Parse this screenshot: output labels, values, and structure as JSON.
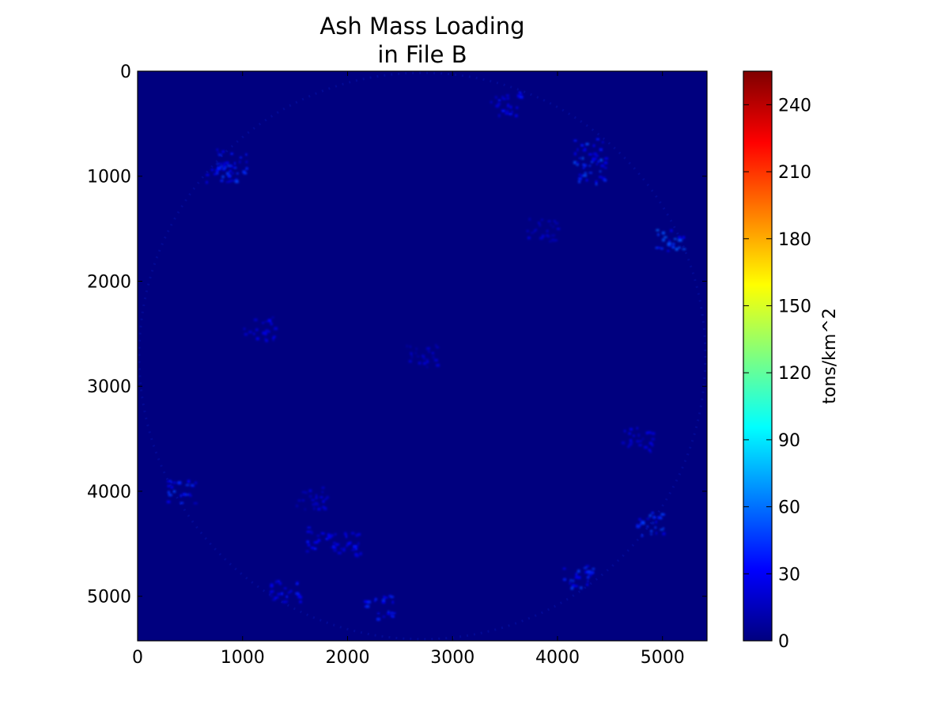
{
  "chart_data": {
    "type": "heatmap",
    "title": "Ash Mass Loading",
    "subtitle": "in File B",
    "x_ticks": [
      0,
      1000,
      2000,
      3000,
      4000,
      5000
    ],
    "y_ticks": [
      0,
      1000,
      2000,
      3000,
      4000,
      5000
    ],
    "xlim": [
      0,
      5424
    ],
    "ylim": [
      5424,
      0
    ],
    "y_inverted": true,
    "grid": false,
    "colormap": "jet",
    "background_color": "#00007f",
    "colorbar": {
      "label": "tons/km^2",
      "range": [
        0,
        255
      ],
      "ticks": [
        0,
        30,
        60,
        90,
        120,
        150,
        180,
        210,
        240
      ],
      "colors": [
        "#00007f",
        "#0000ff",
        "#007fff",
        "#00ffff",
        "#7fff7f",
        "#ffff00",
        "#ff7f00",
        "#ff0000",
        "#7f0000"
      ]
    },
    "disk": {
      "center": [
        2712,
        2712
      ],
      "radius": 2712
    },
    "ash_features": [
      {
        "x": 800,
        "y": 950,
        "value": 40
      },
      {
        "x": 900,
        "y": 850,
        "value": 35
      },
      {
        "x": 1150,
        "y": 2450,
        "value": 25
      },
      {
        "x": 1750,
        "y": 4450,
        "value": 30
      },
      {
        "x": 1650,
        "y": 4050,
        "value": 25
      },
      {
        "x": 2000,
        "y": 4500,
        "value": 30
      },
      {
        "x": 2700,
        "y": 2700,
        "value": 20
      },
      {
        "x": 2300,
        "y": 5100,
        "value": 35
      },
      {
        "x": 1400,
        "y": 4950,
        "value": 30
      },
      {
        "x": 3500,
        "y": 300,
        "value": 30
      },
      {
        "x": 4300,
        "y": 750,
        "value": 45
      },
      {
        "x": 4300,
        "y": 950,
        "value": 40
      },
      {
        "x": 5050,
        "y": 1600,
        "value": 45
      },
      {
        "x": 4900,
        "y": 4300,
        "value": 40
      },
      {
        "x": 4200,
        "y": 4800,
        "value": 40
      },
      {
        "x": 400,
        "y": 4000,
        "value": 40
      },
      {
        "x": 3850,
        "y": 1500,
        "value": 20
      },
      {
        "x": 4750,
        "y": 3500,
        "value": 25
      }
    ]
  }
}
